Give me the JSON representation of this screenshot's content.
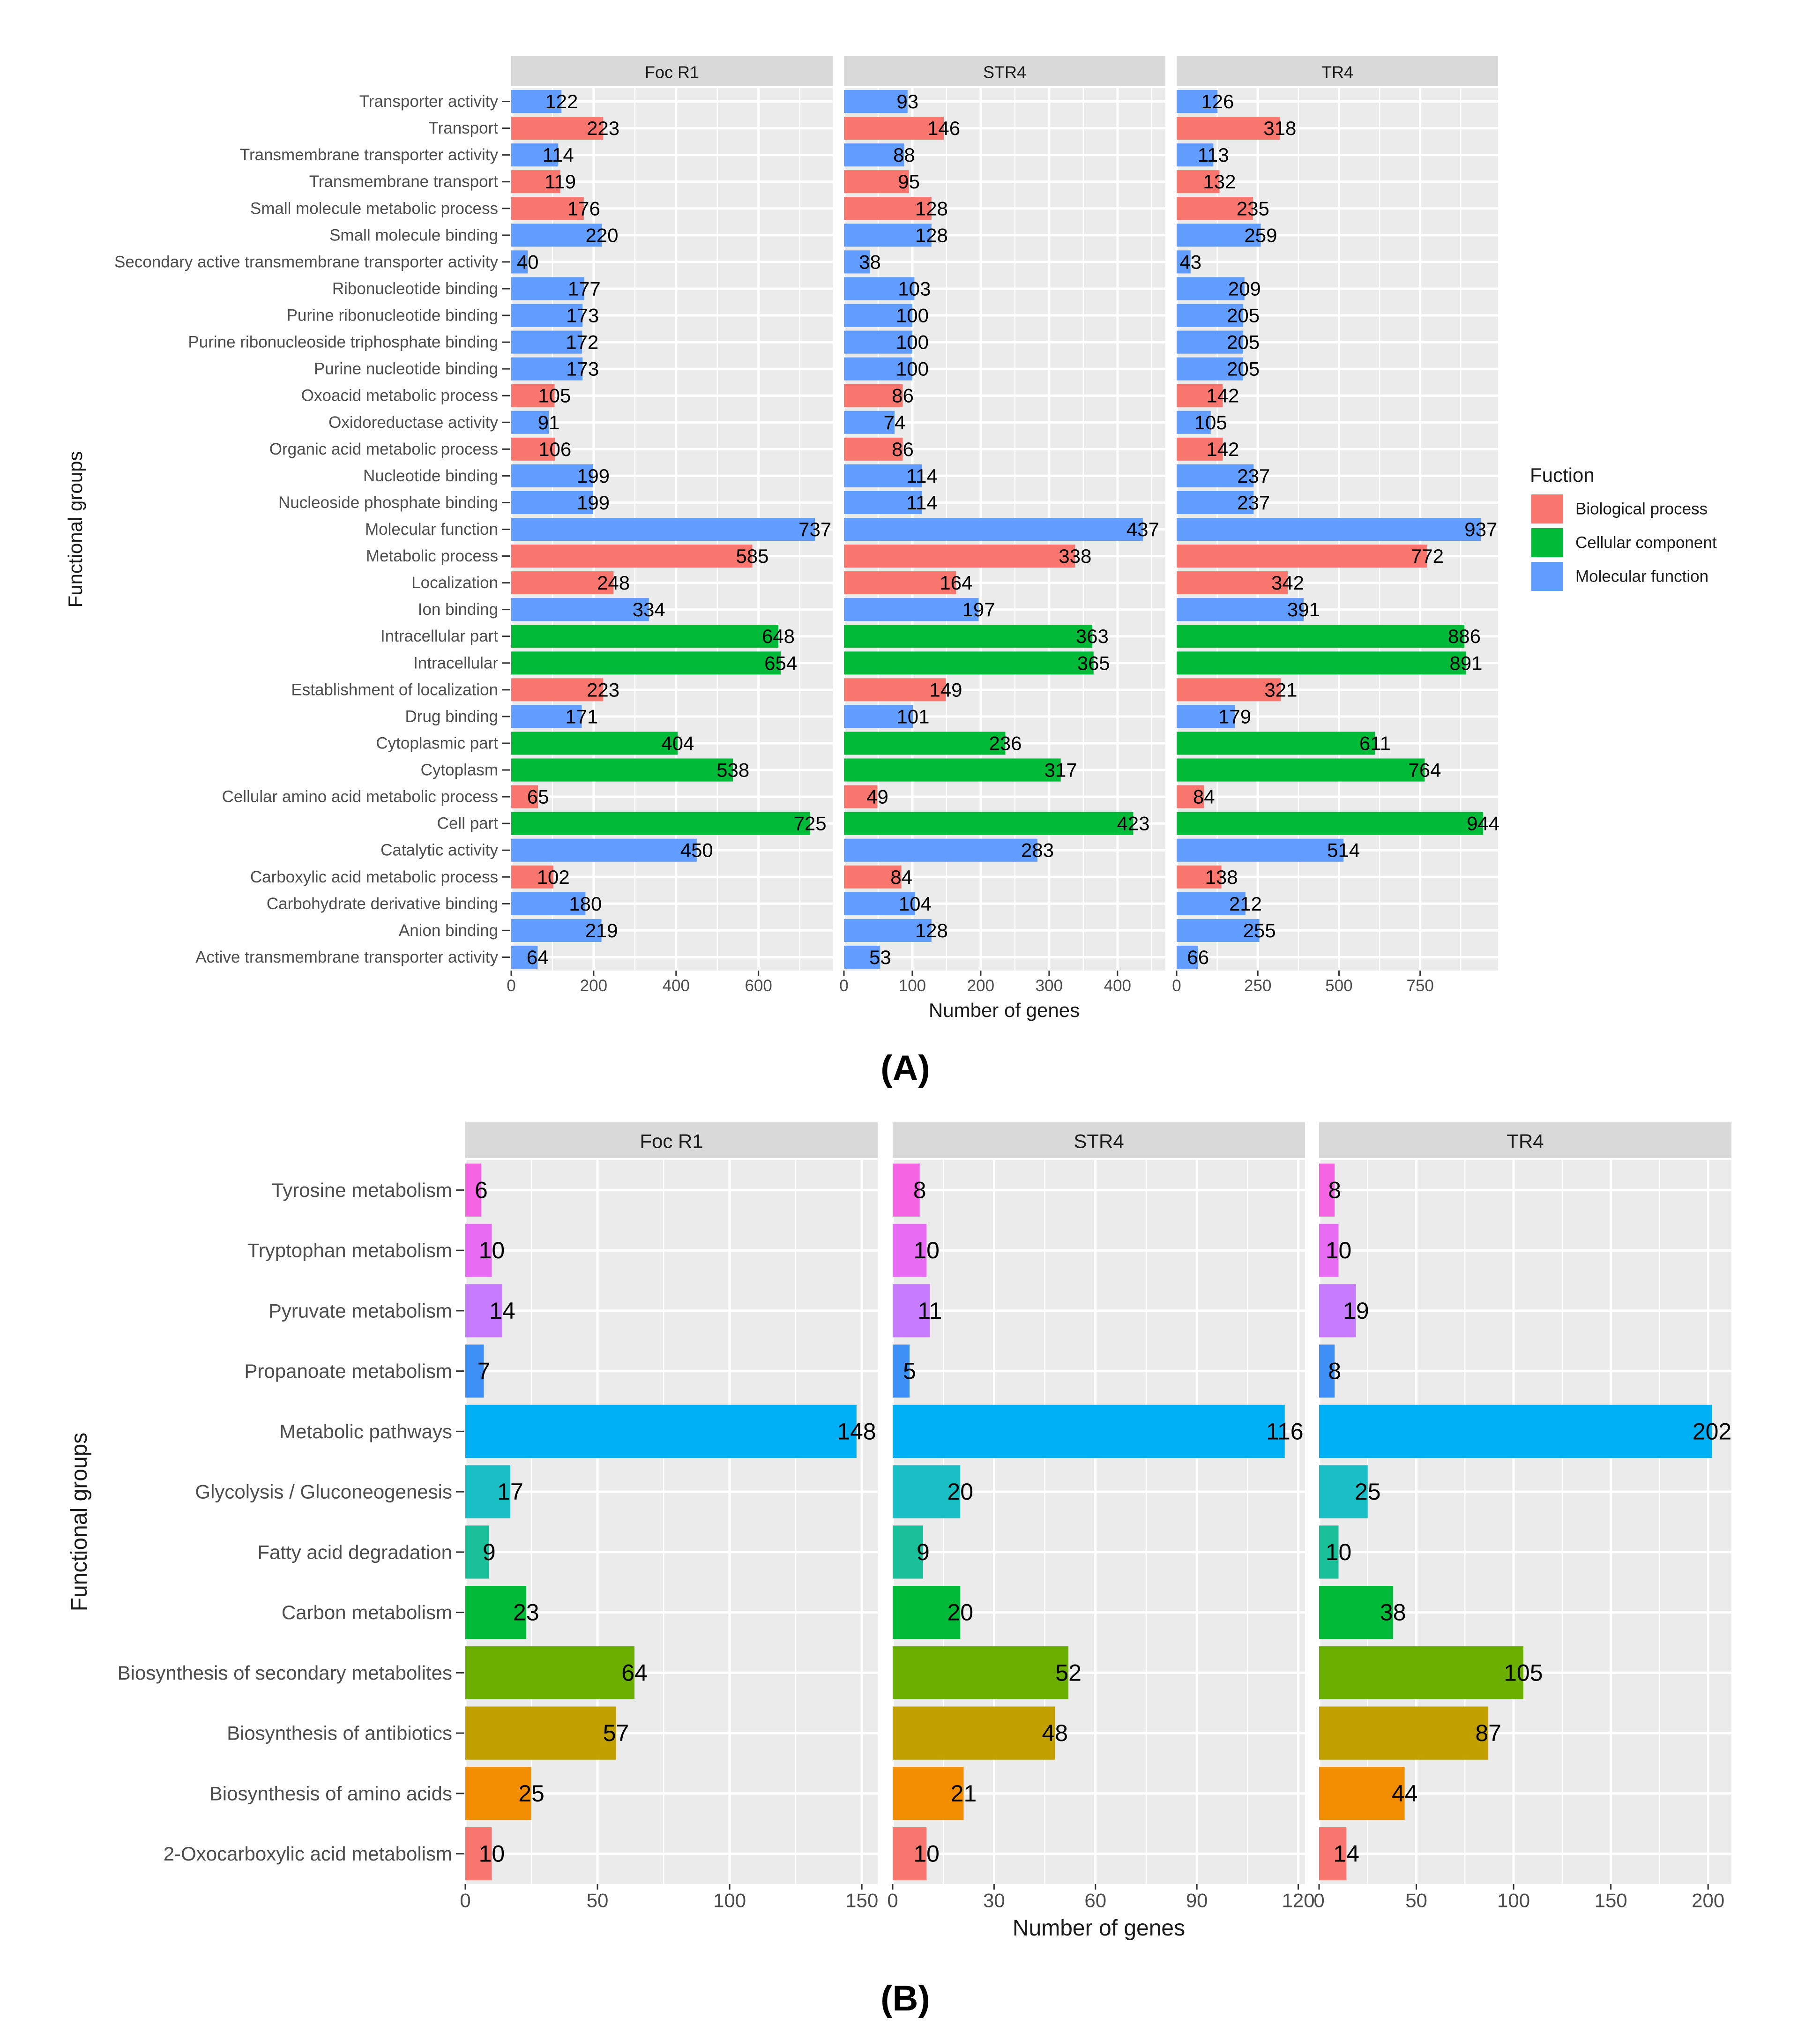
{
  "chart_data": [
    {
      "panel": "(A)",
      "type": "bar",
      "orientation": "horizontal",
      "facets": [
        "Foc R1",
        "STR4",
        "TR4"
      ],
      "xlabel": "Number of genes",
      "ylabel": "Functional groups",
      "legend": {
        "title": "Fuction",
        "position": "right",
        "entries": [
          {
            "name": "Biological process",
            "color": "#F8766D"
          },
          {
            "name": "Cellular component",
            "color": "#00BA38"
          },
          {
            "name": "Molecular function",
            "color": "#619CFF"
          }
        ]
      },
      "xlim": [
        [
          0,
          780
        ],
        [
          0,
          470
        ],
        [
          0,
          990
        ]
      ],
      "xticks": [
        [
          0,
          200,
          400,
          600
        ],
        [
          0,
          100,
          200,
          300,
          400
        ],
        [
          0,
          250,
          500,
          750
        ]
      ],
      "categories": [
        "Transporter activity",
        "Transport",
        "Transmembrane transporter activity",
        "Transmembrane transport",
        "Small molecule metabolic process",
        "Small molecule binding",
        "Secondary active transmembrane transporter activity",
        "Ribonucleotide binding",
        "Purine ribonucleotide binding",
        "Purine ribonucleoside triphosphate binding",
        "Purine nucleotide binding",
        "Oxoacid metabolic process",
        "Oxidoreductase activity",
        "Organic acid metabolic process",
        "Nucleotide binding",
        "Nucleoside phosphate binding",
        "Molecular function",
        "Metabolic process",
        "Localization",
        "Ion binding",
        "Intracellular part",
        "Intracellular",
        "Establishment of localization",
        "Drug binding",
        "Cytoplasmic part",
        "Cytoplasm",
        "Cellular amino acid metabolic process",
        "Cell part",
        "Catalytic activity",
        "Carboxylic acid metabolic process",
        "Carbohydrate derivative binding",
        "Anion binding",
        "Active transmembrane transporter activity"
      ],
      "groups": [
        "MF",
        "BP",
        "MF",
        "BP",
        "BP",
        "MF",
        "MF",
        "MF",
        "MF",
        "MF",
        "MF",
        "BP",
        "MF",
        "BP",
        "MF",
        "MF",
        "MF",
        "BP",
        "BP",
        "MF",
        "CC",
        "CC",
        "BP",
        "MF",
        "CC",
        "CC",
        "BP",
        "CC",
        "MF",
        "BP",
        "MF",
        "MF",
        "MF"
      ],
      "series": [
        {
          "name": "Foc R1",
          "values": [
            122,
            223,
            114,
            119,
            176,
            220,
            40,
            177,
            173,
            172,
            173,
            105,
            91,
            106,
            199,
            199,
            737,
            585,
            248,
            334,
            648,
            654,
            223,
            171,
            404,
            538,
            65,
            725,
            450,
            102,
            180,
            219,
            64
          ]
        },
        {
          "name": "STR4",
          "values": [
            93,
            146,
            88,
            95,
            128,
            128,
            38,
            103,
            100,
            100,
            100,
            86,
            74,
            86,
            114,
            114,
            437,
            338,
            164,
            197,
            363,
            365,
            149,
            101,
            236,
            317,
            49,
            423,
            283,
            84,
            104,
            128,
            53
          ]
        },
        {
          "name": "TR4",
          "values": [
            126,
            318,
            113,
            132,
            235,
            259,
            43,
            209,
            205,
            205,
            205,
            142,
            105,
            142,
            237,
            237,
            937,
            772,
            342,
            391,
            886,
            891,
            321,
            179,
            611,
            764,
            84,
            944,
            514,
            138,
            212,
            255,
            66
          ]
        }
      ]
    },
    {
      "panel": "(B)",
      "type": "bar",
      "orientation": "horizontal",
      "facets": [
        "Foc R1",
        "STR4",
        "TR4"
      ],
      "xlabel": "Number of genes",
      "ylabel": "Functional groups",
      "xlim": [
        [
          0,
          156
        ],
        [
          0,
          122
        ],
        [
          0,
          212
        ]
      ],
      "xticks": [
        [
          0,
          50,
          100,
          150
        ],
        [
          0,
          30,
          60,
          90,
          120
        ],
        [
          0,
          50,
          100,
          150,
          200
        ]
      ],
      "categories": [
        "Tyrosine metabolism",
        "Tryptophan metabolism",
        "Pyruvate metabolism",
        "Propanoate metabolism",
        "Metabolic pathways",
        "Glycolysis / Gluconeogenesis",
        "Fatty acid degradation",
        "Carbon metabolism",
        "Biosynthesis of secondary metabolites",
        "Biosynthesis of antibiotics",
        "Biosynthesis of amino acids",
        "2-Oxocarboxylic acid metabolism"
      ],
      "colors": [
        "#F564E3",
        "#E76BF3",
        "#C77CFF",
        "#619CFF",
        "#00B0F6",
        "#00BFC4",
        "#00BF7D",
        "#00BA38",
        "#7CAE00",
        "#C49A00",
        "#F8766D",
        "#F8766D"
      ],
      "bar_colors": [
        "#F564E3",
        "#E76BF3",
        "#C77CFF",
        "#3E8FF6",
        "#00B0F6",
        "#19BFC4",
        "#19BF99",
        "#00BA38",
        "#6BAF00",
        "#C1A000",
        "#F28C00",
        "#F8766D"
      ],
      "series": [
        {
          "name": "Foc R1",
          "values": [
            6,
            10,
            14,
            7,
            148,
            17,
            9,
            23,
            64,
            57,
            25,
            10
          ]
        },
        {
          "name": "STR4",
          "values": [
            8,
            10,
            11,
            5,
            116,
            20,
            9,
            20,
            52,
            48,
            21,
            10
          ]
        },
        {
          "name": "TR4",
          "values": [
            8,
            10,
            19,
            8,
            202,
            25,
            10,
            38,
            105,
            87,
            44,
            14
          ]
        }
      ]
    }
  ],
  "colors": {
    "panel_bg": "#EBEBEB",
    "strip_bg": "#D9D9D9",
    "grid": "#FFFFFF",
    "axis_text": "#4D4D4D",
    "title_text": "#1A1A1A",
    "group_colors": {
      "BP": "#F8766D",
      "CC": "#00BA38",
      "MF": "#619CFF"
    }
  }
}
